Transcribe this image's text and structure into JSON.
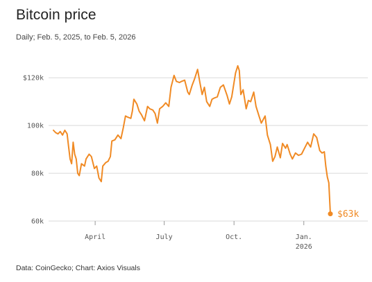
{
  "header": {
    "title": "Bitcoin price",
    "subtitle": "Daily; Feb. 5, 2025, to Feb. 5, 2026"
  },
  "footer": {
    "source": "Data: CoinGecko; Chart: Axios Visuals"
  },
  "colors": {
    "line": "#f08a24",
    "grid": "#d9d9d9",
    "text": "#555555"
  },
  "chart_data": {
    "type": "line",
    "title": "Bitcoin price",
    "subtitle": "Daily; Feb. 5, 2025, to Feb. 5, 2026",
    "ylim": [
      60000,
      125000
    ],
    "xlim": [
      "2025-02-05",
      "2026-02-05"
    ],
    "grid": true,
    "y_ticks": [
      {
        "value": 60000,
        "label": "60k"
      },
      {
        "value": 80000,
        "label": "80k"
      },
      {
        "value": 100000,
        "label": "100k"
      },
      {
        "value": 120000,
        "label": "$120k"
      }
    ],
    "x_ticks": [
      {
        "date": "2025-04-01",
        "label": "April"
      },
      {
        "date": "2025-07-01",
        "label": "July"
      },
      {
        "date": "2025-10-01",
        "label": "Oct."
      },
      {
        "date": "2026-01-01",
        "label": "Jan.",
        "sublabel": "2026"
      }
    ],
    "end_label": "$63k",
    "series": [
      {
        "points": [
          [
            "2025-02-05",
            98000
          ],
          [
            "2025-02-08",
            97000
          ],
          [
            "2025-02-11",
            96500
          ],
          [
            "2025-02-14",
            97500
          ],
          [
            "2025-02-17",
            96000
          ],
          [
            "2025-02-20",
            98000
          ],
          [
            "2025-02-23",
            96500
          ],
          [
            "2025-02-25",
            91000
          ],
          [
            "2025-02-27",
            86000
          ],
          [
            "2025-03-01",
            84000
          ],
          [
            "2025-03-03",
            93000
          ],
          [
            "2025-03-05",
            88000
          ],
          [
            "2025-03-07",
            86000
          ],
          [
            "2025-03-09",
            80000
          ],
          [
            "2025-03-11",
            79000
          ],
          [
            "2025-03-14",
            84000
          ],
          [
            "2025-03-18",
            83000
          ],
          [
            "2025-03-20",
            86000
          ],
          [
            "2025-03-24",
            88000
          ],
          [
            "2025-03-27",
            87000
          ],
          [
            "2025-03-31",
            82000
          ],
          [
            "2025-04-03",
            83000
          ],
          [
            "2025-04-06",
            78000
          ],
          [
            "2025-04-09",
            76500
          ],
          [
            "2025-04-11",
            83000
          ],
          [
            "2025-04-15",
            84500
          ],
          [
            "2025-04-18",
            85000
          ],
          [
            "2025-04-21",
            87000
          ],
          [
            "2025-04-23",
            93500
          ],
          [
            "2025-04-27",
            94000
          ],
          [
            "2025-05-01",
            96000
          ],
          [
            "2025-05-05",
            94500
          ],
          [
            "2025-05-08",
            99000
          ],
          [
            "2025-05-11",
            104000
          ],
          [
            "2025-05-14",
            103500
          ],
          [
            "2025-05-18",
            103000
          ],
          [
            "2025-05-20",
            106000
          ],
          [
            "2025-05-22",
            111000
          ],
          [
            "2025-05-26",
            109000
          ],
          [
            "2025-05-29",
            106000
          ],
          [
            "2025-06-01",
            104500
          ],
          [
            "2025-06-05",
            102000
          ],
          [
            "2025-06-09",
            108000
          ],
          [
            "2025-06-12",
            107000
          ],
          [
            "2025-06-16",
            106500
          ],
          [
            "2025-06-19",
            105000
          ],
          [
            "2025-06-22",
            101000
          ],
          [
            "2025-06-25",
            107000
          ],
          [
            "2025-06-29",
            108000
          ],
          [
            "2025-07-03",
            109500
          ],
          [
            "2025-07-07",
            108000
          ],
          [
            "2025-07-10",
            116000
          ],
          [
            "2025-07-14",
            121000
          ],
          [
            "2025-07-17",
            118500
          ],
          [
            "2025-07-21",
            118000
          ],
          [
            "2025-07-24",
            118500
          ],
          [
            "2025-07-28",
            119000
          ],
          [
            "2025-08-01",
            114000
          ],
          [
            "2025-08-03",
            113000
          ],
          [
            "2025-08-07",
            117000
          ],
          [
            "2025-08-10",
            119500
          ],
          [
            "2025-08-14",
            123500
          ],
          [
            "2025-08-17",
            118000
          ],
          [
            "2025-08-20",
            113000
          ],
          [
            "2025-08-23",
            116000
          ],
          [
            "2025-08-26",
            110000
          ],
          [
            "2025-08-30",
            108000
          ],
          [
            "2025-09-02",
            111000
          ],
          [
            "2025-09-05",
            111500
          ],
          [
            "2025-09-09",
            112000
          ],
          [
            "2025-09-13",
            116000
          ],
          [
            "2025-09-17",
            117000
          ],
          [
            "2025-09-22",
            112500
          ],
          [
            "2025-09-25",
            109000
          ],
          [
            "2025-09-28",
            112000
          ],
          [
            "2025-10-01",
            118000
          ],
          [
            "2025-10-03",
            122000
          ],
          [
            "2025-10-06",
            125000
          ],
          [
            "2025-10-08",
            123000
          ],
          [
            "2025-10-10",
            113000
          ],
          [
            "2025-10-13",
            115000
          ],
          [
            "2025-10-17",
            107000
          ],
          [
            "2025-10-20",
            110500
          ],
          [
            "2025-10-23",
            110000
          ],
          [
            "2025-10-27",
            114000
          ],
          [
            "2025-10-30",
            108000
          ],
          [
            "2025-11-03",
            104000
          ],
          [
            "2025-11-06",
            101000
          ],
          [
            "2025-11-11",
            104000
          ],
          [
            "2025-11-14",
            96000
          ],
          [
            "2025-11-18",
            92000
          ],
          [
            "2025-11-21",
            85000
          ],
          [
            "2025-11-24",
            87000
          ],
          [
            "2025-11-27",
            91000
          ],
          [
            "2025-12-01",
            86500
          ],
          [
            "2025-12-04",
            92500
          ],
          [
            "2025-12-08",
            90500
          ],
          [
            "2025-12-10",
            92000
          ],
          [
            "2025-12-14",
            88000
          ],
          [
            "2025-12-17",
            86000
          ],
          [
            "2025-12-21",
            88500
          ],
          [
            "2025-12-25",
            87500
          ],
          [
            "2025-12-29",
            88000
          ],
          [
            "2026-01-02",
            90500
          ],
          [
            "2026-01-06",
            93000
          ],
          [
            "2026-01-10",
            91000
          ],
          [
            "2026-01-14",
            96500
          ],
          [
            "2026-01-18",
            95000
          ],
          [
            "2026-01-22",
            89500
          ],
          [
            "2026-01-25",
            88500
          ],
          [
            "2026-01-28",
            89000
          ],
          [
            "2026-01-30",
            83000
          ],
          [
            "2026-02-01",
            78500
          ],
          [
            "2026-02-03",
            76000
          ],
          [
            "2026-02-05",
            63000
          ]
        ]
      }
    ]
  }
}
